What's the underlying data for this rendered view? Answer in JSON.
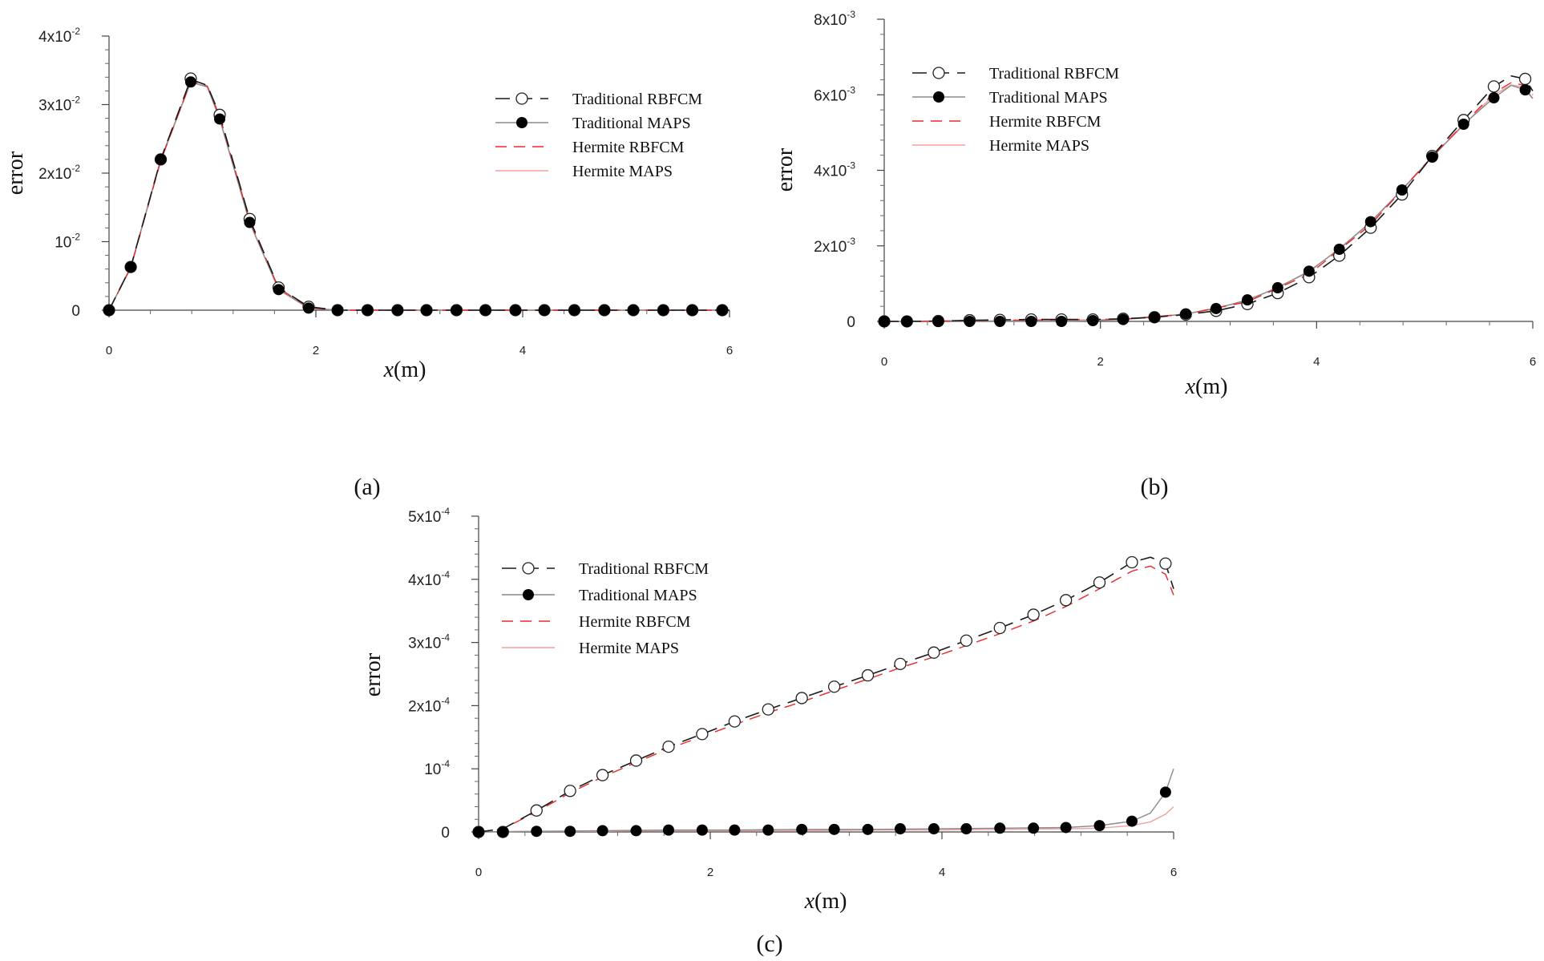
{
  "figure": {
    "panel_labels": [
      "(a)",
      "(b)",
      "(c)"
    ]
  },
  "series_styles": [
    {
      "name": "Traditional RBFCM",
      "color": "#1a1a1a",
      "dash": "18,10",
      "marker": "open-circle"
    },
    {
      "name": "Traditional MAPS",
      "color": "#8a8a8a",
      "dash": "",
      "marker": "filled-circle"
    },
    {
      "name": "Hermite RBFCM",
      "color": "#e8282b",
      "dash": "14,9",
      "marker": "none"
    },
    {
      "name": "Hermite MAPS",
      "color": "#f2a0a0",
      "dash": "",
      "marker": "none"
    }
  ],
  "chart_data": [
    {
      "id": "a",
      "type": "line",
      "title": "",
      "xlabel": "x(m)",
      "ylabel": "error",
      "xlim": [
        0,
        6
      ],
      "ylim": [
        0,
        0.04
      ],
      "xticks": [
        "0",
        "2",
        "4",
        "6"
      ],
      "yticks": [
        {
          "value": 0,
          "mantissa": "0",
          "exp": ""
        },
        {
          "value": 0.01,
          "mantissa": "10",
          "exp": "-2"
        },
        {
          "value": 0.02,
          "mantissa": "2x10",
          "exp": "-2"
        },
        {
          "value": 0.03,
          "mantissa": "3x10",
          "exp": "-2"
        },
        {
          "value": 0.04,
          "mantissa": "4x10",
          "exp": "-2"
        }
      ],
      "marker_x": [
        0,
        0.21,
        0.5,
        0.79,
        1.07,
        1.36,
        1.64,
        1.93,
        2.21,
        2.5,
        2.79,
        3.07,
        3.36,
        3.64,
        3.93,
        4.21,
        4.5,
        4.79,
        5.07,
        5.36,
        5.64,
        5.93
      ],
      "series": [
        {
          "name": "Traditional RBFCM",
          "line_x": [
            0,
            0.21,
            0.5,
            0.79,
            0.95,
            1.07,
            1.36,
            1.64,
            1.93,
            2.21,
            6
          ],
          "line_y": [
            0,
            0.0063,
            0.022,
            0.0337,
            0.0328,
            0.0285,
            0.0133,
            0.0033,
            0.0005,
            0,
            0
          ],
          "marker_y": [
            0,
            0.0063,
            0.022,
            0.0338,
            0.0285,
            0.0133,
            0.0033,
            0.0005,
            0,
            0,
            0,
            0,
            0,
            0,
            0,
            0,
            0,
            0,
            0,
            0,
            0,
            0
          ]
        },
        {
          "name": "Traditional MAPS",
          "line_x": [
            0,
            0.21,
            0.5,
            0.79,
            0.95,
            1.07,
            1.36,
            1.64,
            1.93,
            2.21,
            6
          ],
          "line_y": [
            0,
            0.0063,
            0.022,
            0.0333,
            0.0326,
            0.0279,
            0.0128,
            0.003,
            0.0003,
            0,
            0
          ],
          "marker_y": [
            0,
            0.0063,
            0.022,
            0.0333,
            0.0279,
            0.0128,
            0.003,
            0.0003,
            0,
            0,
            0,
            0,
            0,
            0,
            0,
            0,
            0,
            0,
            0,
            0,
            0,
            0
          ]
        },
        {
          "name": "Hermite RBFCM",
          "line_x": [
            0,
            0.21,
            0.5,
            0.79,
            0.95,
            1.07,
            1.36,
            1.64,
            1.93,
            2.21,
            6
          ],
          "line_y": [
            0,
            0.0062,
            0.0218,
            0.0334,
            0.0327,
            0.0283,
            0.0131,
            0.0032,
            0.0004,
            0,
            0
          ]
        },
        {
          "name": "Hermite MAPS",
          "line_x": [
            0,
            0.21,
            0.5,
            0.79,
            0.95,
            1.07,
            1.36,
            1.64,
            1.93,
            2.21,
            6
          ],
          "line_y": [
            0,
            0.0062,
            0.0218,
            0.0332,
            0.0326,
            0.028,
            0.0129,
            0.003,
            0.0003,
            0,
            0
          ]
        }
      ]
    },
    {
      "id": "b",
      "type": "line",
      "title": "",
      "xlabel": "x(m)",
      "ylabel": "error",
      "xlim": [
        0,
        6
      ],
      "ylim": [
        0,
        0.008
      ],
      "xticks": [
        "0",
        "2",
        "4",
        "6"
      ],
      "yticks": [
        {
          "value": 0,
          "mantissa": "0",
          "exp": ""
        },
        {
          "value": 0.002,
          "mantissa": "2x10",
          "exp": "-3"
        },
        {
          "value": 0.004,
          "mantissa": "4x10",
          "exp": "-3"
        },
        {
          "value": 0.006,
          "mantissa": "6x10",
          "exp": "-3"
        },
        {
          "value": 0.008,
          "mantissa": "8x10",
          "exp": "-3"
        }
      ],
      "marker_x": [
        0,
        0.21,
        0.5,
        0.79,
        1.07,
        1.36,
        1.64,
        1.93,
        2.21,
        2.5,
        2.79,
        3.07,
        3.36,
        3.64,
        3.93,
        4.21,
        4.5,
        4.79,
        5.07,
        5.36,
        5.64,
        5.93
      ],
      "series": [
        {
          "name": "Traditional RBFCM",
          "line_x": [
            0,
            0.21,
            0.5,
            0.79,
            1.07,
            1.36,
            1.64,
            1.93,
            2.21,
            2.5,
            2.79,
            3.07,
            3.36,
            3.64,
            3.93,
            4.21,
            4.5,
            4.79,
            5.07,
            5.36,
            5.64,
            5.8,
            5.93,
            6
          ],
          "line_y": [
            0,
            0,
            1e-05,
            3e-05,
            4e-05,
            5e-05,
            5e-05,
            5e-05,
            7e-05,
            0.00011,
            0.00018,
            0.00028,
            0.00046,
            0.00075,
            0.00117,
            0.00174,
            0.00248,
            0.00336,
            0.00438,
            0.00533,
            0.00622,
            0.0065,
            0.00642,
            0.0061
          ],
          "marker_y": [
            0,
            0,
            1e-05,
            3e-05,
            4e-05,
            5e-05,
            5e-05,
            5e-05,
            7e-05,
            0.00011,
            0.00018,
            0.00028,
            0.00046,
            0.00075,
            0.00117,
            0.00174,
            0.00248,
            0.00336,
            0.00438,
            0.00533,
            0.00622,
            0.00642
          ]
        },
        {
          "name": "Traditional MAPS",
          "line_x": [
            0,
            0.21,
            0.5,
            0.79,
            1.07,
            1.36,
            1.64,
            1.93,
            2.21,
            2.5,
            2.79,
            3.07,
            3.36,
            3.64,
            3.93,
            4.21,
            4.5,
            4.79,
            5.07,
            5.36,
            5.64,
            5.8,
            5.93,
            6
          ],
          "line_y": [
            0,
            0,
            0,
            0,
            0,
            0,
            0,
            2e-05,
            5e-05,
            0.00011,
            0.0002,
            0.00034,
            0.00057,
            0.00089,
            0.00133,
            0.00191,
            0.00264,
            0.00348,
            0.00435,
            0.00522,
            0.00592,
            0.00625,
            0.00613,
            0.0059
          ],
          "marker_y": [
            0,
            0,
            0,
            0,
            0,
            0,
            0,
            2e-05,
            5e-05,
            0.00011,
            0.0002,
            0.00034,
            0.00057,
            0.00089,
            0.00133,
            0.00191,
            0.00264,
            0.00348,
            0.00435,
            0.00522,
            0.00592,
            0.00613
          ]
        },
        {
          "name": "Hermite RBFCM",
          "line_x": [
            0,
            0.5,
            1.07,
            1.64,
            2.21,
            2.79,
            3.36,
            3.93,
            4.5,
            5.07,
            5.64,
            5.8,
            5.93,
            6
          ],
          "line_y": [
            0,
            1e-05,
            3e-05,
            4e-05,
            6e-05,
            0.00019,
            0.00052,
            0.00125,
            0.00256,
            0.00437,
            0.00605,
            0.00632,
            0.00625,
            0.006
          ]
        },
        {
          "name": "Hermite MAPS",
          "line_x": [
            0,
            0.5,
            1.07,
            1.64,
            2.21,
            2.79,
            3.36,
            3.93,
            4.5,
            5.07,
            5.64,
            5.8,
            5.93,
            6
          ],
          "line_y": [
            0,
            0,
            2e-05,
            3e-05,
            6e-05,
            0.00019,
            0.00054,
            0.0013,
            0.0026,
            0.00436,
            0.006,
            0.00626,
            0.0062,
            0.0059
          ]
        }
      ]
    },
    {
      "id": "c",
      "type": "line",
      "title": "",
      "xlabel": "x(m)",
      "ylabel": "error",
      "xlim": [
        0,
        6
      ],
      "ylim": [
        0,
        0.0005
      ],
      "xticks": [
        "0",
        "2",
        "4",
        "6"
      ],
      "yticks": [
        {
          "value": 0,
          "mantissa": "0",
          "exp": ""
        },
        {
          "value": 0.0001,
          "mantissa": "10",
          "exp": "-4"
        },
        {
          "value": 0.0002,
          "mantissa": "2x10",
          "exp": "-4"
        },
        {
          "value": 0.0003,
          "mantissa": "3x10",
          "exp": "-4"
        },
        {
          "value": 0.0004,
          "mantissa": "4x10",
          "exp": "-4"
        },
        {
          "value": 0.0005,
          "mantissa": "5x10",
          "exp": "-4"
        }
      ],
      "marker_x": [
        0,
        0.21,
        0.5,
        0.79,
        1.07,
        1.36,
        1.64,
        1.93,
        2.21,
        2.5,
        2.79,
        3.07,
        3.36,
        3.64,
        3.93,
        4.21,
        4.5,
        4.79,
        5.07,
        5.36,
        5.64,
        5.93
      ],
      "series": [
        {
          "name": "Traditional RBFCM",
          "line_x": [
            0,
            0.21,
            0.5,
            0.79,
            1.07,
            1.36,
            1.64,
            1.93,
            2.21,
            2.5,
            2.79,
            3.07,
            3.36,
            3.64,
            3.93,
            4.21,
            4.5,
            4.79,
            5.07,
            5.36,
            5.64,
            5.8,
            5.93,
            6
          ],
          "line_y": [
            0,
            5e-06,
            3.4e-05,
            6.5e-05,
            9e-05,
            0.000113,
            0.000135,
            0.000155,
            0.000175,
            0.000194,
            0.000212,
            0.00023,
            0.000248,
            0.000266,
            0.000284,
            0.000303,
            0.000323,
            0.000344,
            0.000367,
            0.000395,
            0.000427,
            0.000435,
            0.000425,
            0.000385
          ],
          "marker_y": [
            0,
            0,
            3.4e-05,
            6.5e-05,
            9e-05,
            0.000113,
            0.000135,
            0.000155,
            0.000175,
            0.000194,
            0.000212,
            0.00023,
            0.000248,
            0.000266,
            0.000284,
            0.000303,
            0.000323,
            0.000344,
            0.000367,
            0.000395,
            0.000427,
            0.000425
          ]
        },
        {
          "name": "Traditional MAPS",
          "line_x": [
            0,
            0.5,
            1.07,
            1.64,
            2.21,
            2.79,
            3.36,
            3.93,
            4.5,
            5.07,
            5.36,
            5.64,
            5.8,
            5.93,
            6
          ],
          "line_y": [
            0,
            1e-06,
            2e-06,
            3e-06,
            3e-06,
            4e-06,
            4e-06,
            5e-06,
            6e-06,
            7e-06,
            1e-05,
            1.7e-05,
            3e-05,
            6.3e-05,
            0.0001
          ],
          "marker_y": [
            0,
            0,
            1e-06,
            1e-06,
            2e-06,
            2e-06,
            3e-06,
            3e-06,
            3e-06,
            3e-06,
            4e-06,
            4e-06,
            4e-06,
            5e-06,
            5e-06,
            5e-06,
            6e-06,
            6e-06,
            7e-06,
            1e-05,
            1.7e-05,
            6.3e-05
          ]
        },
        {
          "name": "Hermite RBFCM",
          "line_x": [
            0,
            0.21,
            0.5,
            0.79,
            1.07,
            1.36,
            1.64,
            1.93,
            2.21,
            2.5,
            2.79,
            3.07,
            3.36,
            3.64,
            3.93,
            4.21,
            4.5,
            4.79,
            5.07,
            5.36,
            5.64,
            5.8,
            5.93,
            6
          ],
          "line_y": [
            0,
            5e-06,
            3.2e-05,
            6.2e-05,
            8.7e-05,
            0.00011,
            0.000132,
            0.000151,
            0.00017,
            0.000189,
            0.000206,
            0.000224,
            0.000242,
            0.00026,
            0.000277,
            0.000295,
            0.000314,
            0.000334,
            0.000357,
            0.000385,
            0.000413,
            0.000421,
            0.000408,
            0.000375
          ]
        },
        {
          "name": "Hermite MAPS",
          "line_x": [
            0,
            0.5,
            1.07,
            1.64,
            2.21,
            2.79,
            3.36,
            3.93,
            4.5,
            5.07,
            5.36,
            5.64,
            5.8,
            5.93,
            6
          ],
          "line_y": [
            0,
            1e-06,
            1e-06,
            2e-06,
            2e-06,
            2e-06,
            3e-06,
            3e-06,
            4e-06,
            5e-06,
            6e-06,
            1e-05,
            1.6e-05,
            2.8e-05,
            4e-05
          ]
        }
      ]
    }
  ]
}
